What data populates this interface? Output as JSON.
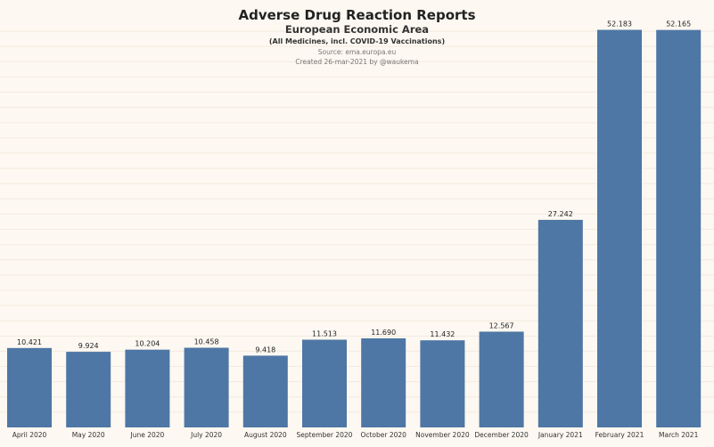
{
  "chart_data": {
    "type": "bar",
    "title": "Adverse Drug Reaction Reports",
    "subtitle": "European Economic Area",
    "subtitle2": "(All Medicines, incl. COVID-19 Vaccinations)",
    "source": "Source: ema.europa.eu",
    "credit": "Created 26-mar-2021 by @waukema",
    "xlabel": "",
    "ylabel": "",
    "ylim": [
      0,
      54000
    ],
    "grid": true,
    "categories": [
      "April 2020",
      "May 2020",
      "June 2020",
      "July 2020",
      "August 2020",
      "September 2020",
      "October 2020",
      "November 2020",
      "December 2020",
      "January 2021",
      "February 2021",
      "March 2021"
    ],
    "values": [
      10421,
      9924,
      10204,
      10458,
      9418,
      11513,
      11690,
      11432,
      12567,
      27242,
      52183,
      52165
    ],
    "value_labels": [
      "10.421",
      "9.924",
      "10.204",
      "10.458",
      "9.418",
      "11.513",
      "11.690",
      "11.432",
      "12.567",
      "27.242",
      "52.183",
      "52.165"
    ],
    "bar_color": "#4e77a5"
  }
}
